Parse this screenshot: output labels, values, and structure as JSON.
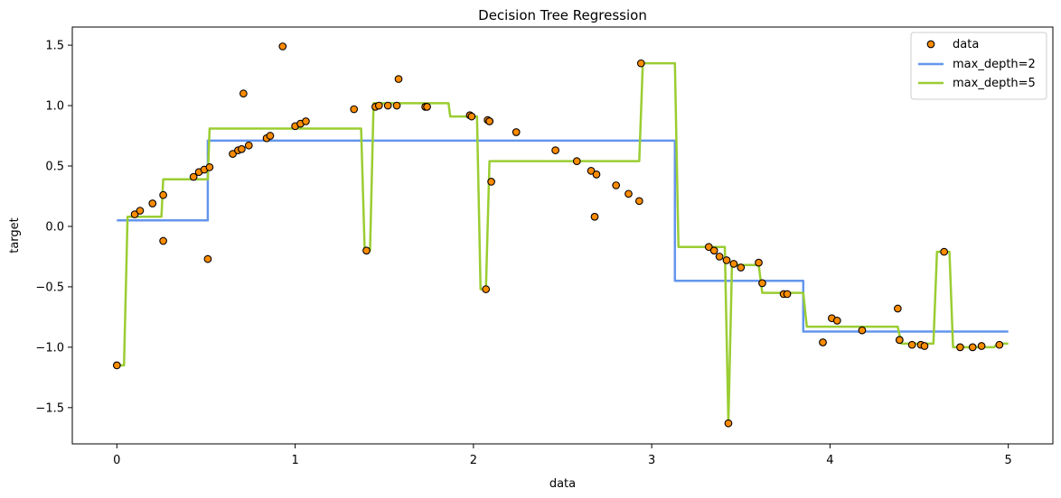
{
  "chart_data": {
    "type": "scatter",
    "title": "Decision Tree Regression",
    "xlabel": "data",
    "ylabel": "target",
    "xlim": [
      -0.25,
      5.25
    ],
    "ylim": [
      -1.8,
      1.65
    ],
    "xticks": [
      0,
      1,
      2,
      3,
      4,
      5
    ],
    "yticks": [
      -1.5,
      -1.0,
      -0.5,
      0.0,
      0.5,
      1.0,
      1.5
    ],
    "xtick_labels": [
      "0",
      "1",
      "2",
      "3",
      "4",
      "5"
    ],
    "ytick_labels": [
      "−1.5",
      "−1.0",
      "−0.5",
      "0.0",
      "0.5",
      "1.0",
      "1.5"
    ],
    "grid": false,
    "legend_position": "top-right",
    "series": [
      {
        "name": "data",
        "kind": "scatter",
        "color": "#ff8c00",
        "edgecolor": "#000000",
        "x": [
          0.0,
          0.1,
          0.13,
          0.2,
          0.26,
          0.26,
          0.43,
          0.46,
          0.49,
          0.51,
          0.52,
          0.65,
          0.68,
          0.7,
          0.71,
          0.74,
          0.84,
          0.86,
          0.93,
          1.0,
          1.03,
          1.06,
          1.33,
          1.4,
          1.45,
          1.47,
          1.52,
          1.57,
          1.58,
          1.73,
          1.74,
          1.98,
          1.99,
          2.07,
          2.08,
          2.09,
          2.09,
          2.1,
          2.24,
          2.46,
          2.58,
          2.66,
          2.69,
          2.68,
          2.8,
          2.87,
          2.93,
          2.94,
          3.32,
          3.35,
          3.38,
          3.42,
          3.43,
          3.46,
          3.5,
          3.6,
          3.62,
          3.74,
          3.76,
          3.96,
          4.01,
          4.04,
          4.18,
          4.38,
          4.39,
          4.39,
          4.46,
          4.51,
          4.53,
          4.64,
          4.73,
          4.8,
          4.85,
          4.95
        ],
        "y": [
          -1.15,
          0.1,
          0.13,
          0.19,
          -0.12,
          0.26,
          0.41,
          0.45,
          0.47,
          -0.27,
          0.49,
          0.6,
          0.63,
          0.64,
          1.1,
          0.67,
          0.73,
          0.75,
          1.49,
          0.83,
          0.85,
          0.87,
          0.97,
          -0.2,
          0.99,
          1.0,
          1.0,
          1.0,
          1.22,
          0.99,
          0.99,
          0.92,
          0.91,
          -0.52,
          0.88,
          0.87,
          0.87,
          0.37,
          0.78,
          0.63,
          0.54,
          0.46,
          0.43,
          0.08,
          0.34,
          0.27,
          0.21,
          1.35,
          -0.17,
          -0.2,
          -0.25,
          -0.28,
          -1.63,
          -0.31,
          -0.34,
          -0.3,
          -0.47,
          -0.56,
          -0.56,
          -0.96,
          -0.76,
          -0.78,
          -0.86,
          -0.68,
          -0.94,
          -0.94,
          -0.98,
          -0.98,
          -0.99,
          -0.21,
          -1.0,
          -1.0,
          -0.99,
          -0.98
        ]
      },
      {
        "name": "max_depth=2",
        "kind": "line",
        "color": "#6495ed",
        "x": [
          0.0,
          0.51,
          0.51,
          3.13,
          3.13,
          3.85,
          3.85,
          5.0
        ],
        "y": [
          0.05,
          0.05,
          0.71,
          0.71,
          -0.45,
          -0.45,
          -0.87,
          -0.87
        ]
      },
      {
        "name": "max_depth=5",
        "kind": "line",
        "color": "#9acd32",
        "x": [
          0.0,
          0.04,
          0.06,
          0.25,
          0.26,
          0.51,
          0.52,
          1.37,
          1.39,
          1.42,
          1.44,
          1.86,
          1.87,
          2.02,
          2.04,
          2.07,
          2.09,
          2.93,
          2.95,
          3.13,
          3.15,
          3.41,
          3.43,
          3.45,
          3.48,
          3.6,
          3.62,
          3.85,
          3.87,
          4.38,
          4.4,
          4.58,
          4.6,
          4.67,
          4.69,
          4.92,
          4.94,
          5.0
        ],
        "y": [
          -1.15,
          -1.15,
          0.08,
          0.08,
          0.39,
          0.39,
          0.81,
          0.81,
          -0.2,
          -0.2,
          1.02,
          1.02,
          0.91,
          0.91,
          -0.52,
          -0.52,
          0.54,
          0.54,
          1.35,
          1.35,
          -0.17,
          -0.17,
          -1.63,
          -0.32,
          -0.32,
          -0.32,
          -0.55,
          -0.55,
          -0.83,
          -0.83,
          -0.97,
          -0.97,
          -0.21,
          -0.21,
          -1.0,
          -1.0,
          -0.97,
          -0.97
        ]
      }
    ]
  }
}
